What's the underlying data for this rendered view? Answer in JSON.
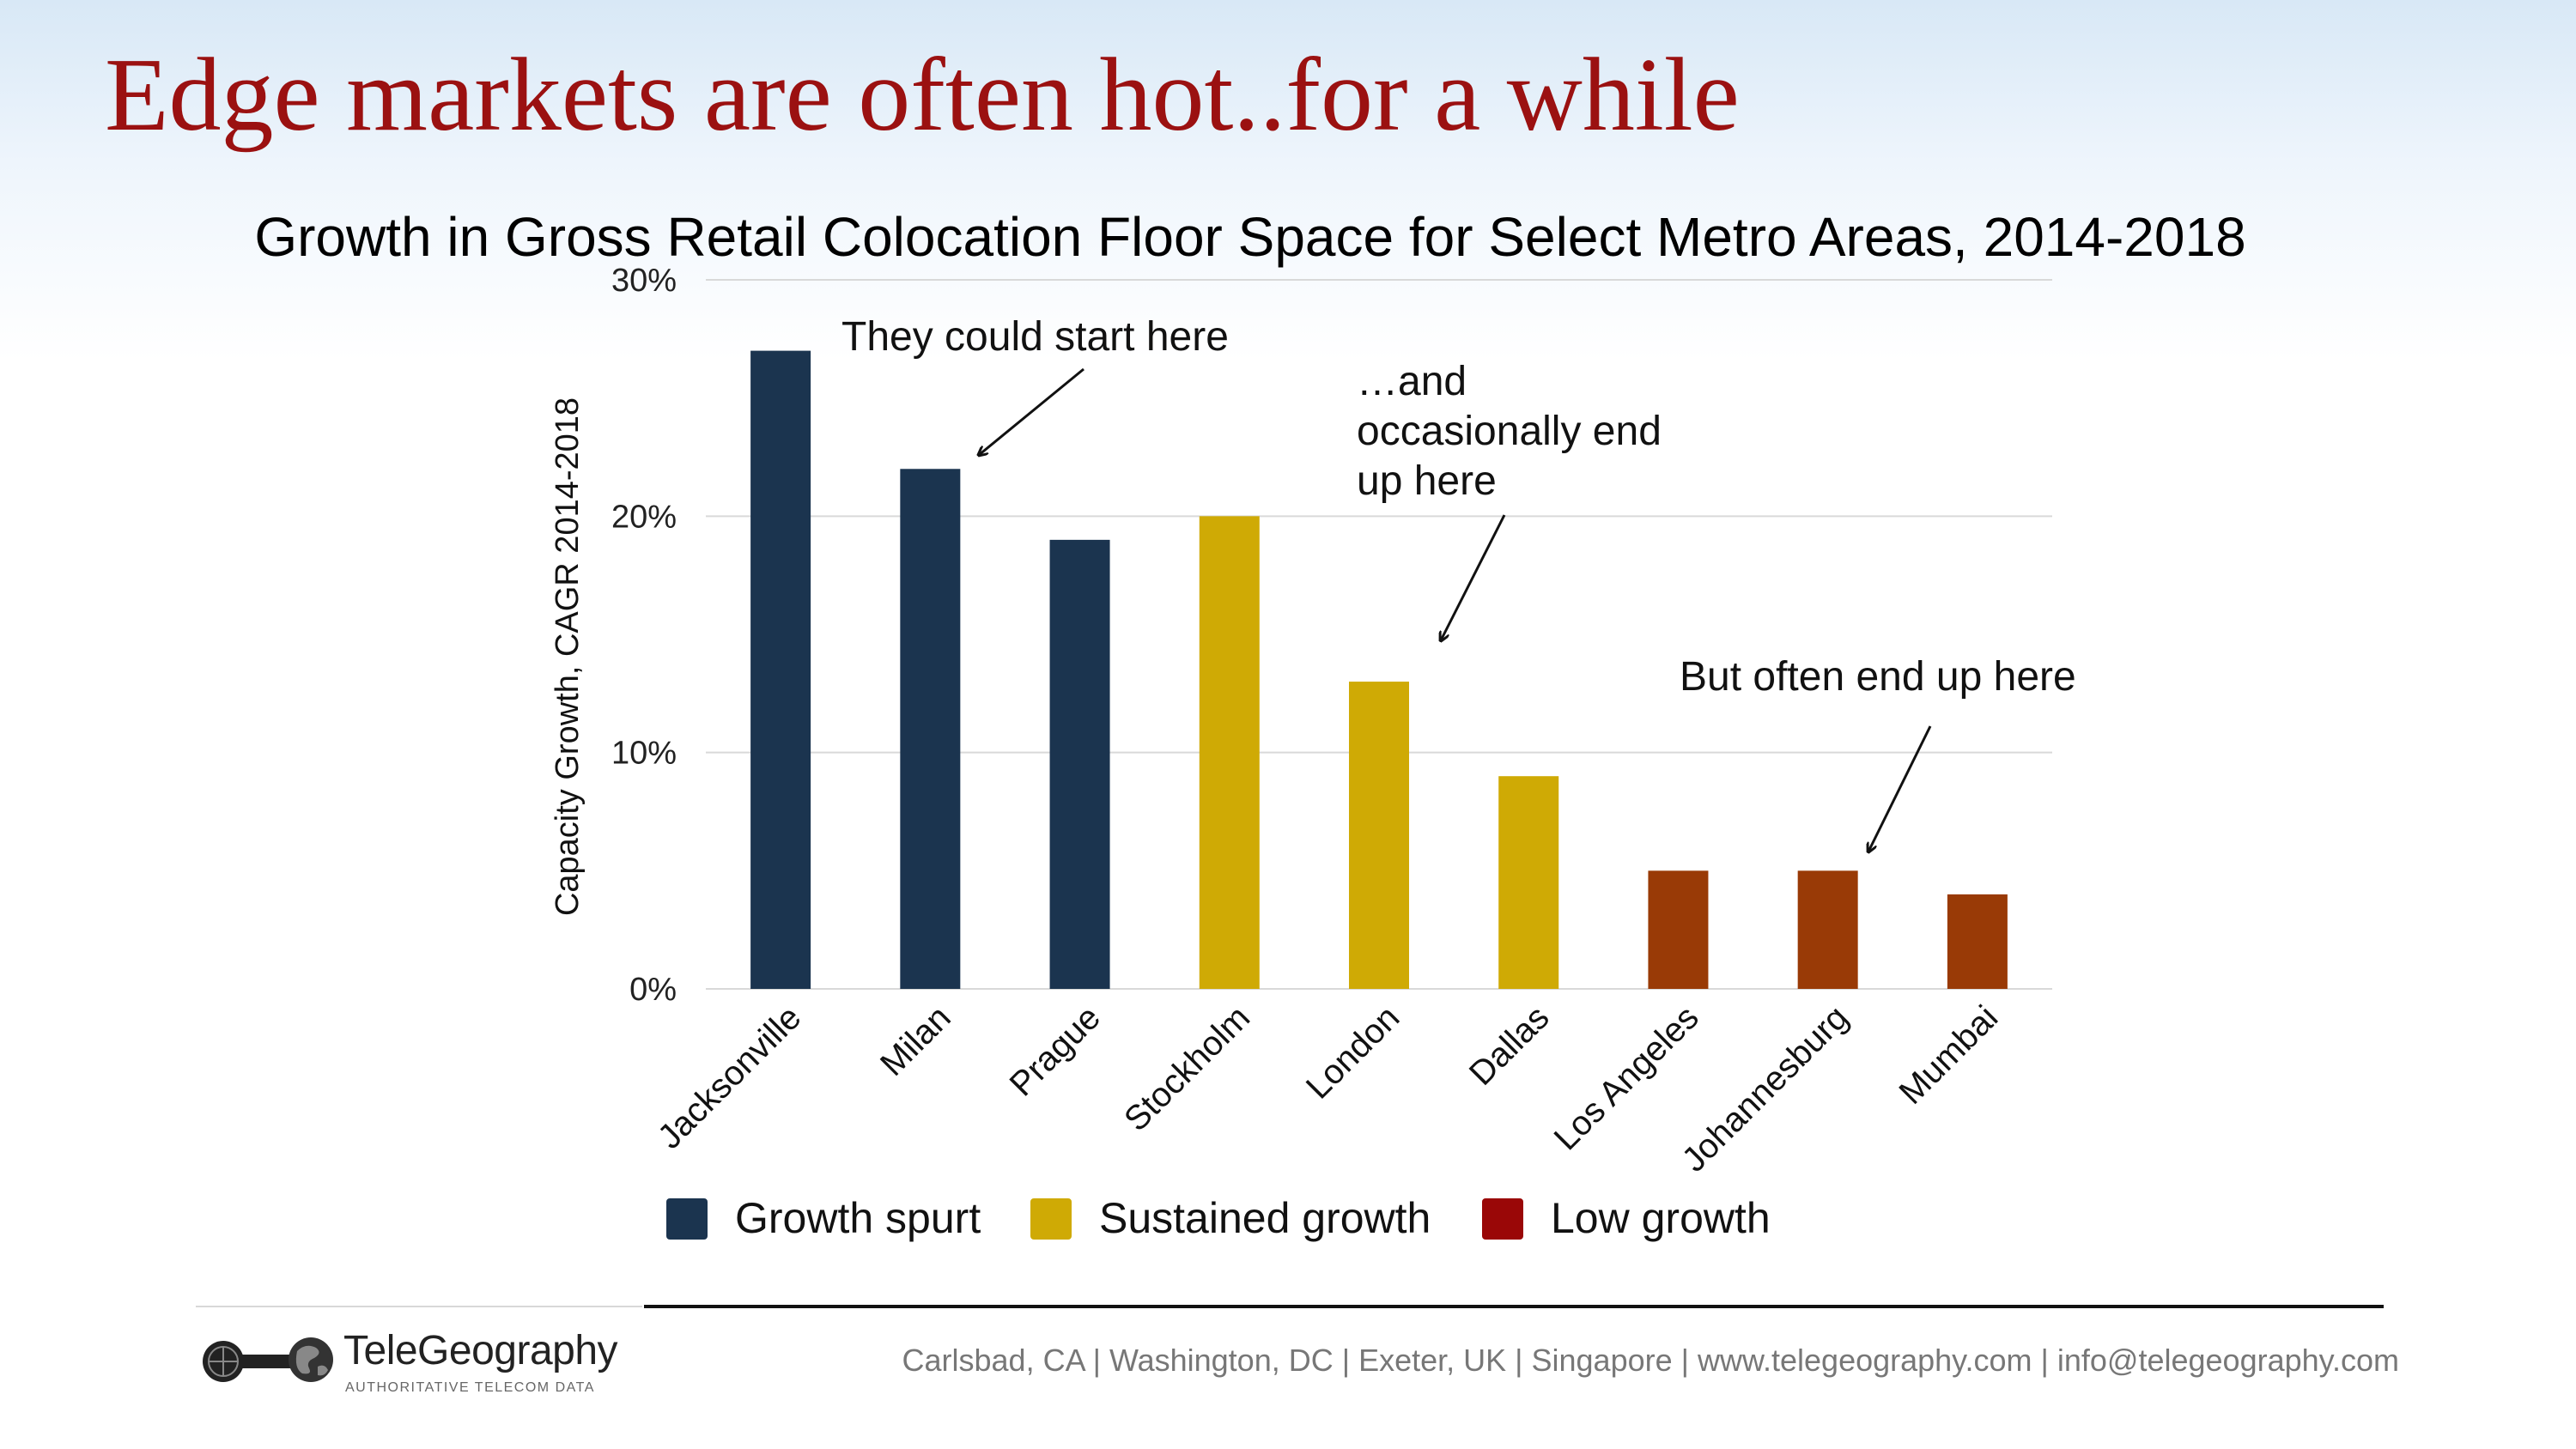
{
  "slide": {
    "title": "Edge markets are often hot..for a while"
  },
  "chart_data": {
    "type": "bar",
    "title": "Growth in Gross Retail Colocation Floor Space for Select Metro Areas, 2014-2018",
    "xlabel": "",
    "ylabel": "Capacity Growth, CAGR 2014-2018",
    "ylim": [
      0,
      30
    ],
    "yticks": [
      "0%",
      "10%",
      "20%",
      "30%"
    ],
    "grid": true,
    "legend_position": "bottom",
    "categories": [
      "Jacksonville",
      "Milan",
      "Prague",
      "Stockholm",
      "London",
      "Dallas",
      "Los Angeles",
      "Johannesburg",
      "Mumbai"
    ],
    "values": [
      27,
      22,
      19,
      20,
      13,
      9,
      5,
      5,
      4
    ],
    "groups": [
      "Growth spurt",
      "Growth spurt",
      "Growth spurt",
      "Sustained growth",
      "Sustained growth",
      "Sustained growth",
      "Low growth",
      "Low growth",
      "Low growth"
    ],
    "series_colors": {
      "Growth spurt": "#1b344f",
      "Sustained growth": "#cfaa05",
      "Low growth": "#993a06"
    },
    "legend": [
      {
        "name": "Growth spurt",
        "color": "#1b344f"
      },
      {
        "name": "Sustained growth",
        "color": "#cfaa05"
      },
      {
        "name": "Low growth",
        "color": "#9a0707"
      }
    ],
    "annotations": [
      {
        "lines": [
          "They could start here"
        ],
        "target": "Milan"
      },
      {
        "lines": [
          "…and",
          "occasionally end",
          "up here"
        ],
        "target": "London"
      },
      {
        "lines": [
          "But often end up here"
        ],
        "target": "Johannesburg"
      }
    ]
  },
  "footer": {
    "logo_name": "TeleGeography",
    "logo_tagline": "AUTHORITATIVE TELECOM DATA",
    "contact": "Carlsbad, CA | Washington, DC | Exeter, UK | Singapore | www.telegeography.com | info@telegeography.com"
  }
}
